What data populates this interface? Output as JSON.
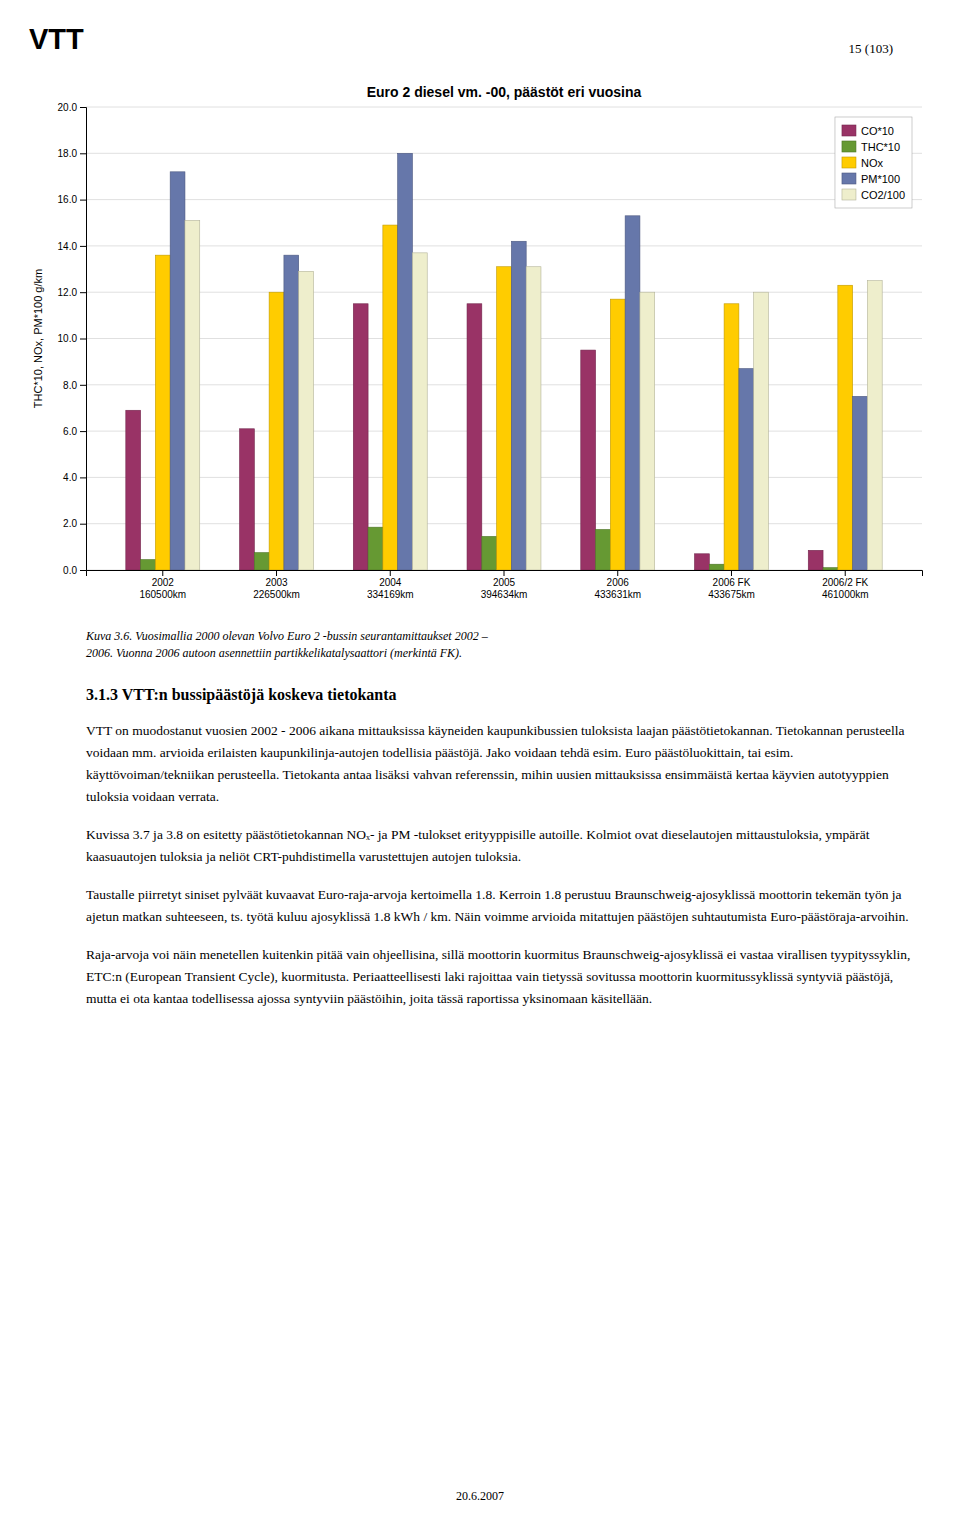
{
  "chart_data": {
    "type": "bar",
    "title": "Euro 2 diesel vm. -00, päästöt eri vuosina",
    "ylabel": "THC*10, NOx, PM*100 g/km",
    "categories": [
      "2002\n160500km",
      "2003\n226500km",
      "2004\n334169km",
      "2005\n394634km",
      "2006\n433631km",
      "2006 FK\n433675km",
      "2006/2 FK\n461000km"
    ],
    "series": [
      {
        "name": "CO*10",
        "color": "#993366",
        "values": [
          6.9,
          6.1,
          11.5,
          11.5,
          9.5,
          0.7,
          0.85
        ]
      },
      {
        "name": "THC*10",
        "color": "#669933",
        "values": [
          0.45,
          0.75,
          1.85,
          1.45,
          1.75,
          0.25,
          0.1
        ]
      },
      {
        "name": "NOx",
        "color": "#FFCC00",
        "values": [
          13.6,
          12.0,
          14.9,
          13.1,
          11.7,
          11.5,
          12.3
        ]
      },
      {
        "name": "PM*100",
        "color": "#6677AA",
        "values": [
          17.2,
          13.6,
          18.0,
          14.2,
          15.3,
          8.7,
          7.5
        ]
      },
      {
        "name": "CO2/100",
        "color": "#EEEECC",
        "values": [
          15.1,
          12.9,
          13.7,
          13.1,
          12.0,
          12.0,
          12.5
        ]
      }
    ],
    "ylim": [
      0,
      20
    ],
    "yticks": [
      {
        "value": 0,
        "label": "0.0"
      },
      {
        "value": 2,
        "label": "2.0"
      },
      {
        "value": 4,
        "label": "4.0"
      },
      {
        "value": 6,
        "label": "6.0"
      },
      {
        "value": 8,
        "label": "8.0"
      },
      {
        "value": 10,
        "label": "10.0"
      },
      {
        "value": 12,
        "label": "12.0"
      },
      {
        "value": 14,
        "label": "14.0"
      },
      {
        "value": 16,
        "label": "16.0"
      },
      {
        "value": 18,
        "label": "18.0"
      },
      {
        "value": 20,
        "label": "20.0"
      }
    ],
    "grid": true,
    "legend": "top-right"
  },
  "logo": "VTT",
  "page_number": "15 (103)",
  "caption": "Kuva 3.6. Vuosimallia 2000 olevan Volvo Euro 2 -bussin seurantamittaukset 2002 –\n2006. Vuonna 2006 autoon asennettiin partikkelikatalysaattori (merkintä FK).",
  "section_heading": "3.1.3  VTT:n bussipäästöjä koskeva tietokanta",
  "paragraphs": [
    "VTT on muodostanut vuosien 2002 - 2006 aikana mittauksissa käyneiden kaupunkibussien tuloksista laajan päästötietokannan. Tietokannan perusteella voidaan mm. arvioida erilaisten kaupunkilinja-autojen todellisia päästöjä. Jako voidaan tehdä esim. Euro päästöluokittain, tai esim. käyttövoiman/tekniikan perusteella. Tietokanta antaa lisäksi vahvan referenssin, mihin uusien mittauksissa ensimmäistä kertaa käyvien autotyyppien tuloksia voidaan verrata.",
    "Kuvissa 3.7 ja 3.8 on esitetty päästötietokannan NOₓ- ja PM -tulokset erityyppisille autoille. Kolmiot ovat dieselautojen mittaustuloksia, ympärät kaasuautojen tuloksia ja neliöt CRT-puhdistimella varustettujen autojen tuloksia.",
    "Taustalle piirretyt siniset pylväät kuvaavat Euro-raja-arvoja kertoimella 1.8. Kerroin 1.8 perustuu Braunschweig-ajosyklissä moottorin tekemän työn ja ajetun matkan suhteeseen, ts. työtä kuluu ajosyklissä 1.8 kWh / km. Näin voimme arvioida mitattujen päästöjen suhtautumista Euro-päästöraja-arvoihin.",
    "Raja-arvoja voi näin menetellen kuitenkin pitää vain ohjeellisina, sillä moottorin kuormitus Braunschweig-ajosyklissä ei vastaa virallisen tyypityssyklin, ETC:n (European Transient Cycle), kuormitusta. Periaatteellisesti laki rajoittaa vain tietyssä sovitussa moottorin kuormitussyklissä syntyviä päästöjä, mutta ei ota kantaa todellisessa ajossa syntyviin päästöihin, joita tässä raportissa yksinomaan käsitellään."
  ],
  "footer": "20.6.2007"
}
